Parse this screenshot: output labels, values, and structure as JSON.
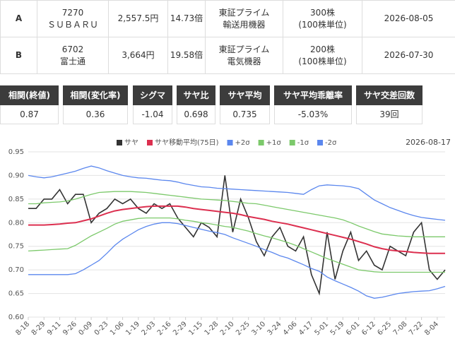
{
  "stocks": {
    "rows": [
      {
        "label": "A",
        "code": "7270",
        "name": "ＳＵＢＡＲＵ",
        "price": "2,557.5円",
        "per": "14.73倍",
        "market": "東証プライム",
        "sector": "輸送用機器",
        "shares": "300株",
        "unit": "(100株単位)",
        "date": "2026-08-05"
      },
      {
        "label": "B",
        "code": "6702",
        "name": "富士通",
        "price": "3,664円",
        "per": "19.58倍",
        "market": "東証プライム",
        "sector": "電気機器",
        "shares": "200株",
        "unit": "(100株単位)",
        "date": "2026-07-30"
      }
    ]
  },
  "stats": {
    "headers": [
      "相関(終値)",
      "相関(変化率)",
      "シグマ",
      "サヤ比",
      "サヤ平均",
      "サヤ平均乖離率",
      "サヤ交差回数"
    ],
    "values": [
      "0.87",
      "0.36",
      "-1.04",
      "0.698",
      "0.735",
      "-5.03%",
      "39回"
    ]
  },
  "chart_data": {
    "type": "line",
    "subtitle": "2026-08-17",
    "categories": [
      "8-18",
      null,
      "8-29",
      null,
      "9-11",
      null,
      "9-26",
      null,
      "0-09",
      null,
      "0-23",
      null,
      "1-06",
      null,
      "1-19",
      null,
      "2-03",
      null,
      "2-16",
      null,
      "2-29",
      null,
      "1-15",
      null,
      "1-28",
      null,
      "2-10",
      null,
      "2-25",
      null,
      "3-10",
      null,
      "3-24",
      null,
      "4-06",
      null,
      "4-17",
      null,
      "5-01",
      null,
      "5-19",
      null,
      "6-01",
      null,
      "6-12",
      null,
      "6-25",
      null,
      "7-08",
      null,
      "7-22",
      null,
      "8-04",
      null
    ],
    "series": [
      {
        "name": "サヤ",
        "color": "#333333",
        "values": [
          0.83,
          0.83,
          0.85,
          0.85,
          0.87,
          0.84,
          0.86,
          0.86,
          0.8,
          0.82,
          0.83,
          0.85,
          0.84,
          0.85,
          0.83,
          0.82,
          0.84,
          0.83,
          0.84,
          0.81,
          0.79,
          0.77,
          0.8,
          0.79,
          0.77,
          0.9,
          0.78,
          0.85,
          0.81,
          0.76,
          0.73,
          0.77,
          0.79,
          0.75,
          0.74,
          0.77,
          0.69,
          0.65,
          0.78,
          0.68,
          0.74,
          0.78,
          0.72,
          0.74,
          0.71,
          0.7,
          0.75,
          0.74,
          0.73,
          0.78,
          0.8,
          0.7,
          0.68,
          0.7
        ]
      },
      {
        "name": "サヤ移動平均(75日)",
        "color": "#dc2f4f",
        "values": [
          0.795,
          0.795,
          0.795,
          0.796,
          0.797,
          0.799,
          0.8,
          0.804,
          0.808,
          0.814,
          0.82,
          0.825,
          0.828,
          0.83,
          0.832,
          0.834,
          0.835,
          0.835,
          0.835,
          0.835,
          0.833,
          0.83,
          0.828,
          0.826,
          0.824,
          0.822,
          0.82,
          0.817,
          0.813,
          0.81,
          0.807,
          0.803,
          0.8,
          0.797,
          0.793,
          0.789,
          0.785,
          0.781,
          0.777,
          0.773,
          0.769,
          0.765,
          0.76,
          0.755,
          0.749,
          0.745,
          0.742,
          0.74,
          0.739,
          0.737,
          0.736,
          0.735,
          0.735,
          0.735
        ]
      },
      {
        "name": "+2σ",
        "color": "#5b87ee",
        "values": [
          0.9,
          0.897,
          0.895,
          0.897,
          0.901,
          0.905,
          0.909,
          0.915,
          0.92,
          0.916,
          0.91,
          0.905,
          0.9,
          0.897,
          0.895,
          0.894,
          0.892,
          0.89,
          0.889,
          0.886,
          0.882,
          0.879,
          0.876,
          0.875,
          0.873,
          0.872,
          0.871,
          0.87,
          0.869,
          0.868,
          0.867,
          0.866,
          0.865,
          0.864,
          0.862,
          0.86,
          0.87,
          0.878,
          0.88,
          0.879,
          0.878,
          0.876,
          0.872,
          0.86,
          0.848,
          0.84,
          0.832,
          0.826,
          0.82,
          0.815,
          0.811,
          0.809,
          0.807,
          0.805
        ]
      },
      {
        "name": "+1σ",
        "color": "#7cc96b",
        "values": [
          0.84,
          0.84,
          0.842,
          0.843,
          0.844,
          0.846,
          0.85,
          0.855,
          0.86,
          0.864,
          0.865,
          0.866,
          0.866,
          0.866,
          0.865,
          0.864,
          0.862,
          0.86,
          0.858,
          0.856,
          0.854,
          0.852,
          0.85,
          0.849,
          0.848,
          0.847,
          0.845,
          0.843,
          0.841,
          0.84,
          0.837,
          0.834,
          0.831,
          0.828,
          0.825,
          0.822,
          0.819,
          0.816,
          0.813,
          0.81,
          0.806,
          0.8,
          0.793,
          0.787,
          0.781,
          0.776,
          0.774,
          0.772,
          0.771,
          0.77,
          0.77,
          0.77,
          0.77,
          0.77
        ]
      },
      {
        "name": "-1σ",
        "color": "#7cc96b",
        "values": [
          0.74,
          0.741,
          0.742,
          0.743,
          0.744,
          0.745,
          0.752,
          0.762,
          0.772,
          0.78,
          0.788,
          0.797,
          0.803,
          0.806,
          0.809,
          0.81,
          0.81,
          0.81,
          0.81,
          0.808,
          0.805,
          0.803,
          0.8,
          0.798,
          0.795,
          0.792,
          0.79,
          0.786,
          0.782,
          0.777,
          0.772,
          0.768,
          0.763,
          0.758,
          0.752,
          0.745,
          0.738,
          0.731,
          0.724,
          0.718,
          0.712,
          0.706,
          0.7,
          0.698,
          0.696,
          0.695,
          0.695,
          0.695,
          0.695,
          0.695,
          0.695,
          0.695,
          0.695,
          0.695
        ]
      },
      {
        "name": "-2σ",
        "color": "#5b87ee",
        "values": [
          0.69,
          0.69,
          0.69,
          0.69,
          0.69,
          0.69,
          0.692,
          0.7,
          0.71,
          0.72,
          0.735,
          0.752,
          0.765,
          0.775,
          0.785,
          0.792,
          0.797,
          0.8,
          0.8,
          0.798,
          0.794,
          0.79,
          0.786,
          0.782,
          0.779,
          0.775,
          0.768,
          0.762,
          0.756,
          0.75,
          0.743,
          0.737,
          0.73,
          0.725,
          0.718,
          0.711,
          0.703,
          0.697,
          0.685,
          0.677,
          0.67,
          0.663,
          0.655,
          0.645,
          0.64,
          0.642,
          0.646,
          0.65,
          0.652,
          0.654,
          0.655,
          0.656,
          0.66,
          0.665
        ]
      }
    ],
    "ylim": [
      0.6,
      0.95
    ],
    "yticks": [
      {
        "value": 0.6,
        "label": "0.60"
      },
      {
        "value": 0.65,
        "label": "0.65"
      },
      {
        "value": 0.7,
        "label": "0.70"
      },
      {
        "value": 0.75,
        "label": "0.75"
      },
      {
        "value": 0.8,
        "label": "0.80"
      },
      {
        "value": 0.85,
        "label": "0.85"
      },
      {
        "value": 0.9,
        "label": "0.90"
      },
      {
        "value": 0.95,
        "label": "0.95"
      }
    ],
    "grid": true
  }
}
